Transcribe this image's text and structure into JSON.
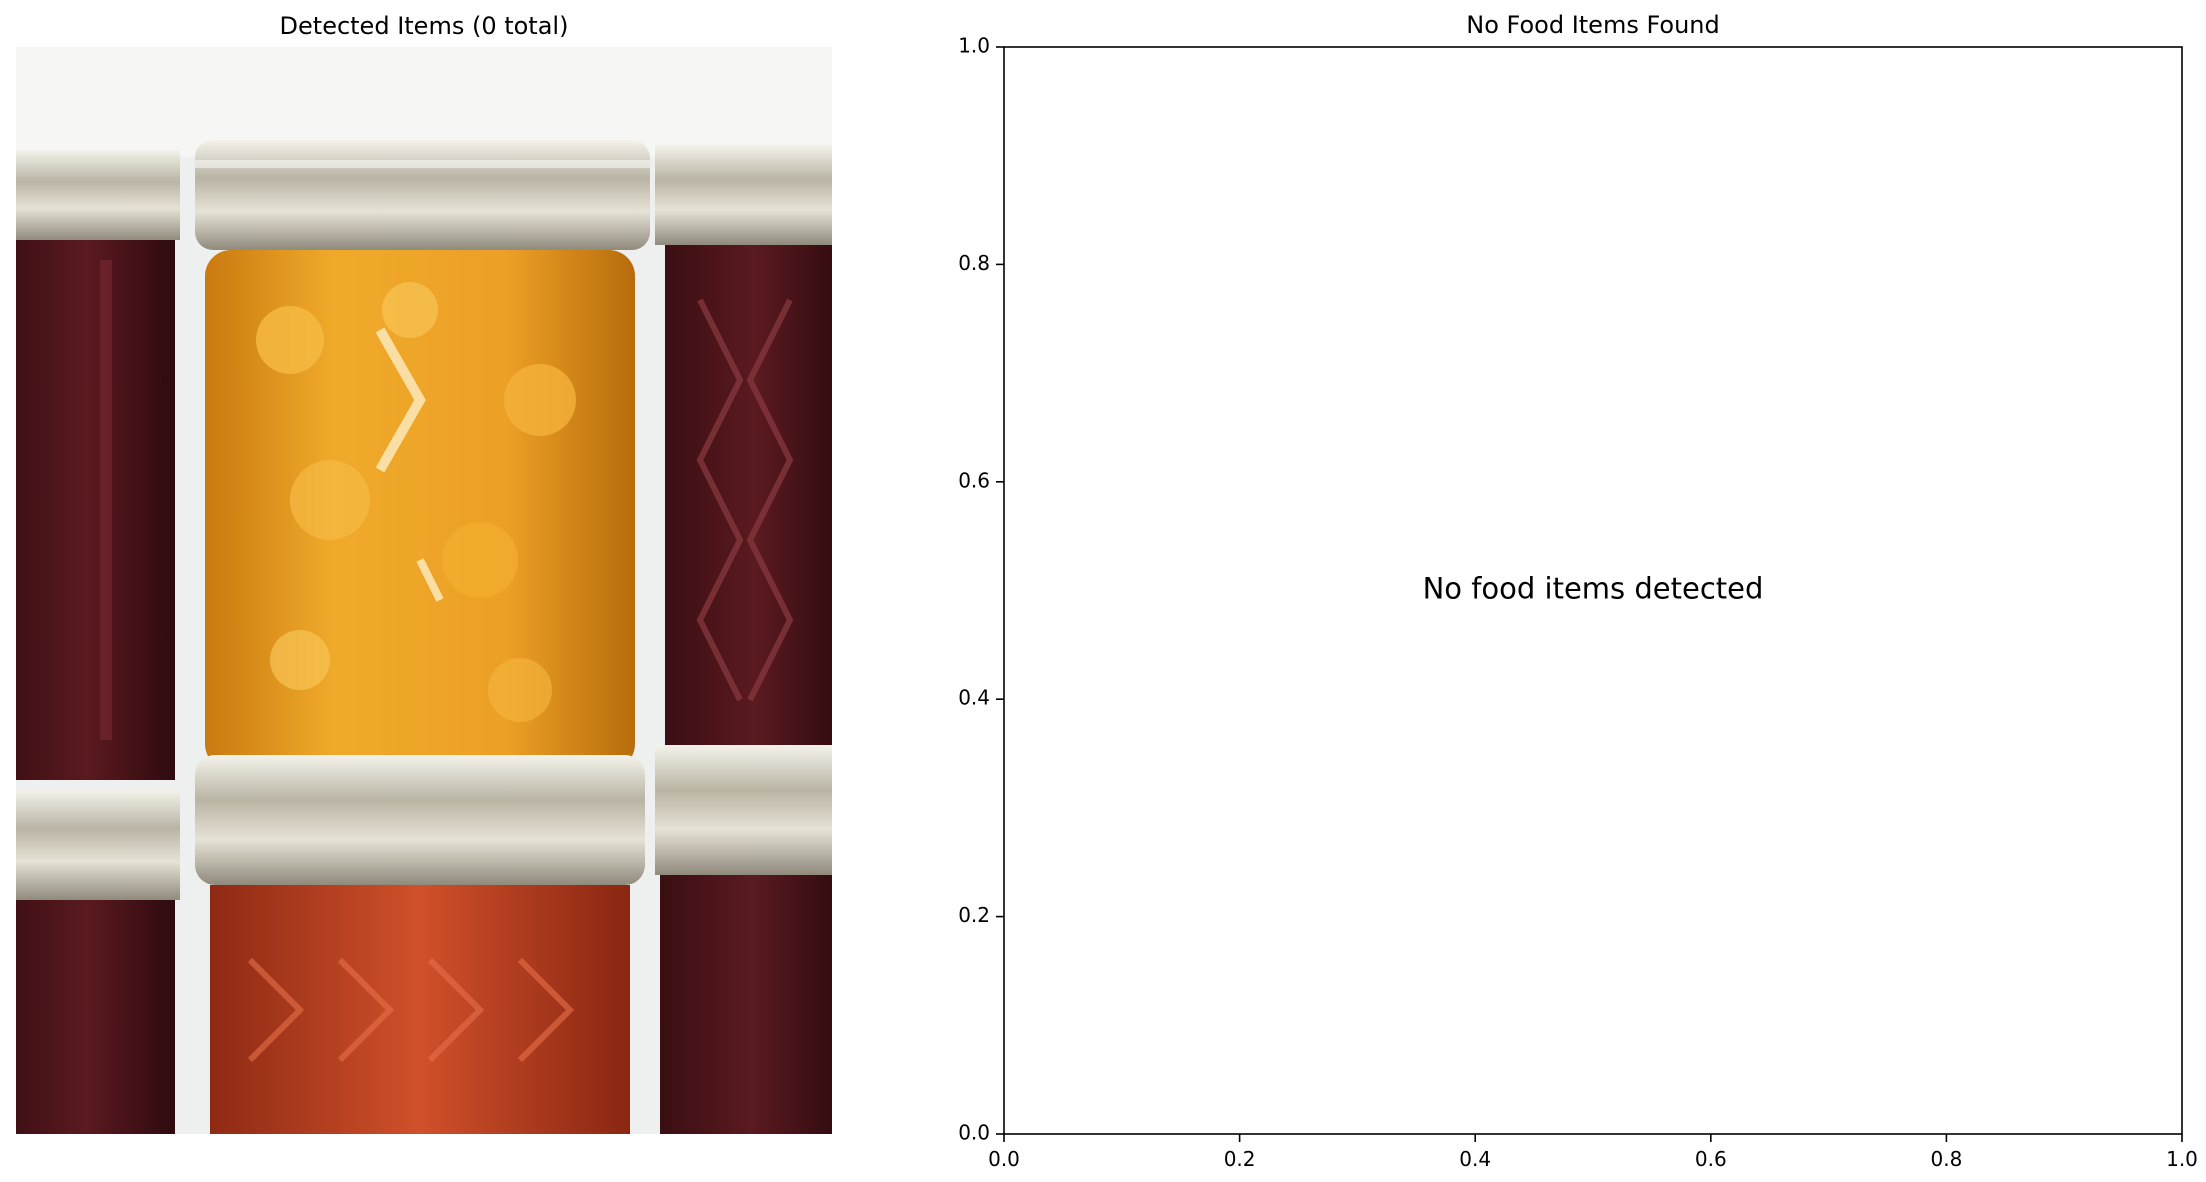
{
  "left_panel": {
    "title": "Detected Items (0 total)",
    "photo": {
      "name": "food-jars-photo",
      "palette": {
        "backdrop": "#eef0f0",
        "dark_jam": "#4a1418",
        "apricot_jam": "#e89a1c",
        "red_jam": "#c0401c",
        "lid_silver": "#c9c4b6"
      }
    }
  },
  "chart_data": {
    "type": "scatter",
    "title": "No Food Items Found",
    "xlabel": "",
    "ylabel": "",
    "xlim": [
      0.0,
      1.0
    ],
    "ylim": [
      0.0,
      1.0
    ],
    "grid": false,
    "series": [],
    "xticks": [
      "0.0",
      "0.2",
      "0.4",
      "0.6",
      "0.8",
      "1.0"
    ],
    "yticks": [
      "0.0",
      "0.2",
      "0.4",
      "0.6",
      "0.8",
      "1.0"
    ],
    "annotation": {
      "text": "No food items detected",
      "x": 0.5,
      "y": 0.5
    }
  }
}
